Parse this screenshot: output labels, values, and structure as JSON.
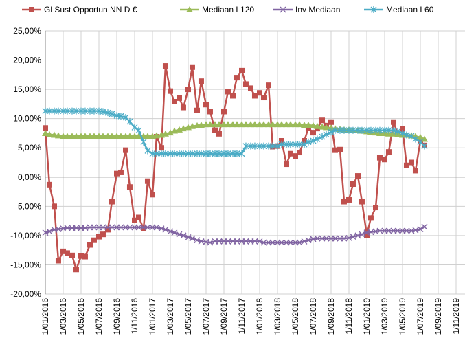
{
  "chart_data": {
    "type": "line",
    "x": [
      "1/01/2016",
      "15/01/2016",
      "1/02/2016",
      "15/02/2016",
      "1/03/2016",
      "15/03/2016",
      "1/04/2016",
      "15/04/2016",
      "1/05/2016",
      "15/05/2016",
      "1/06/2016",
      "15/06/2016",
      "1/07/2016",
      "15/07/2016",
      "1/08/2016",
      "15/08/2016",
      "1/09/2016",
      "15/09/2016",
      "1/10/2016",
      "15/10/2016",
      "1/11/2016",
      "15/11/2016",
      "1/12/2016",
      "15/12/2016",
      "1/01/2017",
      "15/01/2017",
      "1/02/2017",
      "15/02/2017",
      "1/03/2017",
      "15/03/2017",
      "1/04/2017",
      "15/04/2017",
      "1/05/2017",
      "15/05/2017",
      "1/06/2017",
      "15/06/2017",
      "1/07/2017",
      "15/07/2017",
      "1/08/2017",
      "15/08/2017",
      "1/09/2017",
      "15/09/2017",
      "1/10/2017",
      "15/10/2017",
      "1/11/2017",
      "15/11/2017",
      "1/12/2017",
      "15/12/2017",
      "1/01/2018",
      "15/01/2018",
      "1/02/2018",
      "15/02/2018",
      "1/03/2018",
      "15/03/2018",
      "1/04/2018",
      "15/04/2018",
      "1/05/2018",
      "15/05/2018",
      "1/06/2018",
      "15/06/2018",
      "1/07/2018",
      "15/07/2018",
      "1/08/2018",
      "15/08/2018",
      "1/09/2018",
      "15/09/2018",
      "1/10/2018",
      "15/10/2018",
      "1/11/2018",
      "15/11/2018",
      "1/12/2018",
      "15/12/2018",
      "1/01/2019",
      "15/01/2019",
      "1/02/2019",
      "15/02/2019",
      "1/03/2019",
      "15/03/2019",
      "1/04/2019",
      "15/04/2019",
      "1/05/2019",
      "15/05/2019",
      "1/06/2019",
      "15/06/2019",
      "1/07/2019",
      "15/07/2019"
    ],
    "series": [
      {
        "name": "Gl Sust Opportun NN D €",
        "color": "#c0504d",
        "marker": "square",
        "values": [
          8.4,
          -1.3,
          -5,
          -14.3,
          -12.7,
          -13,
          -13.4,
          -15.8,
          -13.5,
          -13.6,
          -11.6,
          -10.8,
          -10.2,
          -9.8,
          -9,
          -4.2,
          0.6,
          0.8,
          4.6,
          -1.7,
          -7.4,
          -6.9,
          -8.8,
          -0.7,
          -3,
          6.9,
          5,
          19,
          14.7,
          12.9,
          13.5,
          11.9,
          15,
          18.8,
          11.4,
          16.4,
          12.4,
          11.2,
          8,
          7.4,
          11.2,
          14.6,
          13.9,
          17,
          18.2,
          15.9,
          15.2,
          13.9,
          14.4,
          13.6,
          15.7,
          5.2,
          5.3,
          6.2,
          2.2,
          4,
          3.6,
          4.2,
          6.2,
          8.4,
          7.6,
          8.3,
          9.7,
          8.8,
          9.4,
          4.6,
          4.7,
          -4.2,
          -3.9,
          -1.2,
          0.2,
          -4.2,
          -9.9,
          -7,
          -5.2,
          3.3,
          3,
          4.3,
          9.4,
          7.4,
          8.2,
          2,
          2.5,
          1.1,
          6.2,
          5.4
        ]
      },
      {
        "name": "Mediaan L120",
        "color": "#9bbb59",
        "marker": "triangle",
        "values": [
          7.5,
          7.3,
          7.2,
          7.1,
          7,
          7,
          7,
          7,
          7,
          7,
          7,
          7,
          7,
          7,
          7,
          7,
          7,
          7,
          7,
          7,
          7,
          7,
          7,
          7,
          7,
          7.1,
          7.2,
          7.4,
          7.6,
          7.9,
          8.1,
          8.3,
          8.5,
          8.7,
          8.8,
          8.9,
          9,
          9,
          9,
          9,
          9,
          9,
          9,
          9,
          9,
          9,
          9,
          9,
          9,
          9,
          9,
          9,
          9,
          9,
          9,
          9,
          9,
          9,
          8.9,
          8.9,
          8.8,
          8.7,
          8.6,
          8.5,
          8.4,
          8.3,
          8.2,
          8.1,
          8.1,
          8,
          8,
          7.9,
          7.8,
          7.7,
          7.6,
          7.5,
          7.5,
          7.4,
          7.4,
          7.3,
          7.2,
          7.2,
          7.1,
          7,
          6.8,
          6.5
        ]
      },
      {
        "name": "Inv Mediaan",
        "color": "#8064a2",
        "marker": "x",
        "values": [
          -9.5,
          -9.3,
          -9,
          -8.9,
          -8.8,
          -8.7,
          -8.7,
          -8.7,
          -8.7,
          -8.7,
          -8.6,
          -8.6,
          -8.6,
          -8.6,
          -8.6,
          -8.6,
          -8.6,
          -8.6,
          -8.6,
          -8.6,
          -8.6,
          -8.6,
          -8.6,
          -8.6,
          -8.6,
          -8.6,
          -8.8,
          -9,
          -9.3,
          -9.5,
          -9.8,
          -10,
          -10.3,
          -10.5,
          -10.8,
          -11,
          -11.1,
          -11.2,
          -11,
          -11,
          -11,
          -11,
          -11,
          -11,
          -11,
          -11,
          -11,
          -11,
          -11,
          -11.2,
          -11.2,
          -11.2,
          -11.2,
          -11.2,
          -11.2,
          -11.2,
          -11.2,
          -11.2,
          -11,
          -10.8,
          -10.6,
          -10.5,
          -10.5,
          -10.5,
          -10.5,
          -10.5,
          -10.5,
          -10.5,
          -10.4,
          -10.2,
          -10,
          -9.8,
          -9.5,
          -9.4,
          -9.3,
          -9.2,
          -9.2,
          -9.2,
          -9.2,
          -9.2,
          -9.2,
          -9.2,
          -9.2,
          -9.1,
          -8.9,
          -8.5
        ]
      },
      {
        "name": "Mediaan L60",
        "color": "#4bacc6",
        "marker": "asterisk",
        "values": [
          11.3,
          11.3,
          11.3,
          11.3,
          11.3,
          11.3,
          11.3,
          11.3,
          11.3,
          11.3,
          11.3,
          11.3,
          11.3,
          11.2,
          11,
          10.8,
          10.5,
          10.4,
          10.2,
          9.5,
          8.5,
          8,
          6,
          4.5,
          4,
          4,
          4,
          4,
          4,
          4,
          4,
          4,
          4,
          4,
          4,
          4,
          4,
          4,
          4,
          4,
          4,
          4,
          4,
          4,
          4,
          5.3,
          5.3,
          5.3,
          5.3,
          5.3,
          5.3,
          5.3,
          5.3,
          5.6,
          5.6,
          5.6,
          5.6,
          5.6,
          5.6,
          6,
          6.2,
          6.5,
          6.9,
          7.3,
          7.7,
          8,
          8,
          8,
          8,
          8,
          8,
          8,
          8,
          8,
          8,
          8,
          8,
          8,
          8,
          7.8,
          7.5,
          7.2,
          7,
          6.5,
          6,
          5.3
        ]
      }
    ],
    "xlim": [
      "1/01/2016",
      "1/12/2019"
    ],
    "xticks": [
      "1/01/2016",
      "1/03/2016",
      "1/05/2016",
      "1/07/2016",
      "1/09/2016",
      "1/11/2016",
      "1/01/2017",
      "1/03/2017",
      "1/05/2017",
      "1/07/2017",
      "1/09/2017",
      "1/11/2017",
      "1/01/2018",
      "1/03/2018",
      "1/05/2018",
      "1/07/2018",
      "1/09/2018",
      "1/11/2018",
      "1/01/2019",
      "1/03/2019",
      "1/05/2019",
      "1/07/2019",
      "1/09/2019",
      "1/11/2019"
    ],
    "ylim": [
      -20,
      25
    ],
    "yticks": [
      {
        "value": -20,
        "label": "-20,00%"
      },
      {
        "value": -15,
        "label": "-15,00%"
      },
      {
        "value": -10,
        "label": "-10,00%"
      },
      {
        "value": -5,
        "label": "-5,00%"
      },
      {
        "value": 0,
        "label": "0,00%"
      },
      {
        "value": 5,
        "label": "5,00%"
      },
      {
        "value": 10,
        "label": "10,00%"
      },
      {
        "value": 15,
        "label": "15,00%"
      },
      {
        "value": 20,
        "label": "20,00%"
      },
      {
        "value": 25,
        "label": "25,00%"
      }
    ],
    "grid": true,
    "legend": "top"
  }
}
